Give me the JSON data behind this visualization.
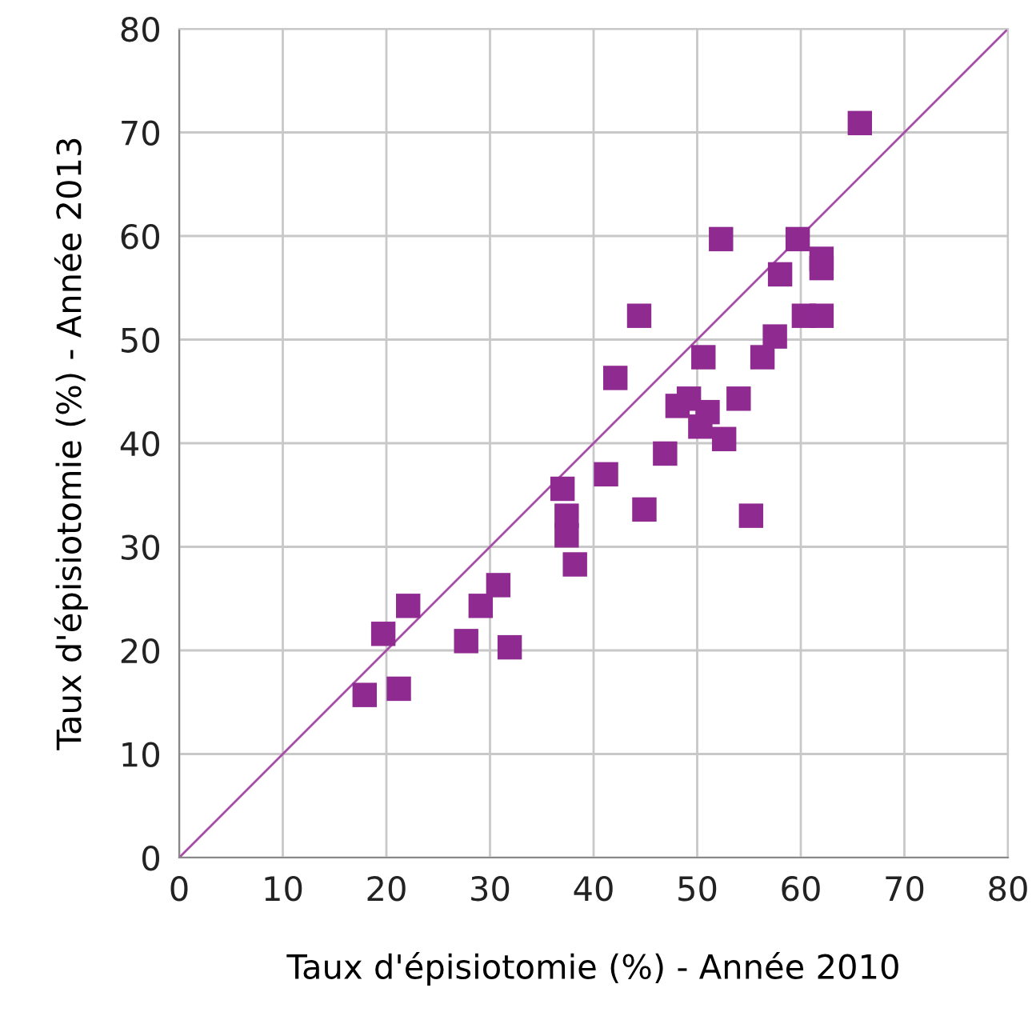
{
  "chart_data": {
    "type": "scatter",
    "xlabel": "Taux d'épisiotomie (%) - Année 2010",
    "ylabel": "Taux d'épisiotomie (%) - Année 2013",
    "xlim": [
      0,
      80
    ],
    "ylim": [
      0,
      80
    ],
    "xticks": [
      0,
      10,
      20,
      30,
      40,
      50,
      60,
      70,
      80
    ],
    "yticks": [
      0,
      10,
      20,
      30,
      40,
      50,
      60,
      70,
      80
    ],
    "grid": true,
    "marker": "square",
    "series": [
      {
        "color": "#8e2a90",
        "x": [
          17.9,
          21.2,
          19.7,
          22.1,
          27.7,
          31.9,
          29.1,
          30.8,
          37.0,
          37.4,
          37.4,
          38.2,
          41.2,
          42.1,
          44.4,
          44.9,
          46.9,
          48.1,
          49.2,
          50.3,
          51.0,
          50.6,
          52.3,
          52.6,
          54.0,
          55.2,
          56.3,
          57.5,
          58.0,
          59.7,
          60.3,
          62.0,
          62.0,
          62.0,
          65.7
        ],
        "values": [
          15.7,
          16.3,
          21.6,
          24.3,
          20.9,
          20.3,
          24.3,
          26.3,
          35.6,
          33.0,
          31.1,
          28.3,
          37.0,
          46.3,
          52.3,
          33.6,
          39.0,
          43.6,
          44.3,
          41.6,
          43.0,
          48.3,
          59.7,
          40.4,
          44.3,
          33.0,
          48.3,
          50.3,
          56.3,
          59.7,
          52.3,
          52.3,
          57.8,
          56.9,
          70.9
        ]
      },
      {
        "type": "line",
        "color": "#a64ca6",
        "marker": "none",
        "x": [
          0,
          80
        ],
        "values": [
          0,
          80
        ]
      }
    ]
  }
}
